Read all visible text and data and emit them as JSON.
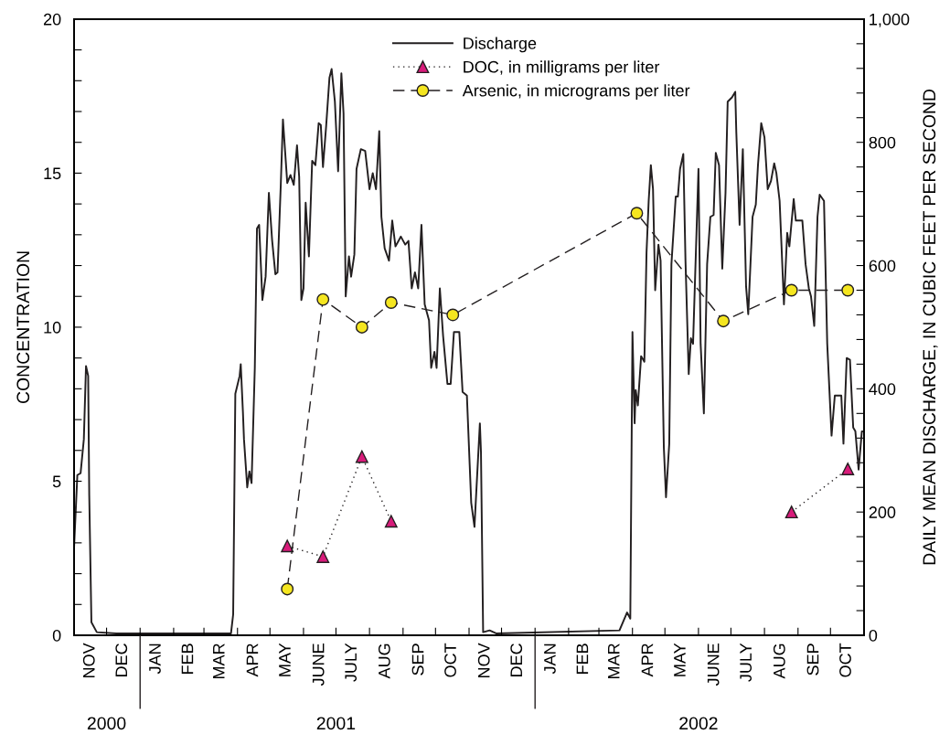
{
  "chart_data": {
    "type": "line",
    "ylabel": "CONCENTRATION",
    "y2label": "DAILY MEAN DISCHARGE, IN CUBIC FEET PER SECOND",
    "xlim": [
      "2000-11-01",
      "2002-11-01"
    ],
    "xticks": [
      {
        "value": "2000-11-01",
        "label": null
      },
      {
        "value": "2000-11-16",
        "label": "NOV"
      },
      {
        "value": "2000-12-01",
        "label": null
      },
      {
        "value": "2000-12-16",
        "label": "DEC"
      },
      {
        "value": "2001-01-01",
        "label": null
      },
      {
        "value": "2001-01-16",
        "label": "JAN"
      },
      {
        "value": "2001-02-01",
        "label": null
      },
      {
        "value": "2001-02-15",
        "label": "FEB"
      },
      {
        "value": "2001-03-01",
        "label": null
      },
      {
        "value": "2001-03-16",
        "label": "MAR"
      },
      {
        "value": "2001-04-01",
        "label": null
      },
      {
        "value": "2001-04-16",
        "label": "APR"
      },
      {
        "value": "2001-05-01",
        "label": null
      },
      {
        "value": "2001-05-16",
        "label": "MAY"
      },
      {
        "value": "2001-06-01",
        "label": null
      },
      {
        "value": "2001-06-16",
        "label": "JUNE"
      },
      {
        "value": "2001-07-01",
        "label": null
      },
      {
        "value": "2001-07-16",
        "label": "JULY"
      },
      {
        "value": "2001-08-01",
        "label": null
      },
      {
        "value": "2001-08-16",
        "label": "AUG"
      },
      {
        "value": "2001-09-01",
        "label": null
      },
      {
        "value": "2001-09-16",
        "label": "SEP"
      },
      {
        "value": "2001-10-01",
        "label": null
      },
      {
        "value": "2001-10-16",
        "label": "OCT"
      },
      {
        "value": "2001-11-01",
        "label": null
      },
      {
        "value": "2001-11-16",
        "label": "NOV"
      },
      {
        "value": "2001-12-01",
        "label": null
      },
      {
        "value": "2001-12-16",
        "label": "DEC"
      },
      {
        "value": "2002-01-01",
        "label": null
      },
      {
        "value": "2002-01-16",
        "label": "JAN"
      },
      {
        "value": "2002-02-01",
        "label": null
      },
      {
        "value": "2002-02-15",
        "label": "FEB"
      },
      {
        "value": "2002-03-01",
        "label": null
      },
      {
        "value": "2002-03-16",
        "label": "MAR"
      },
      {
        "value": "2002-04-01",
        "label": null
      },
      {
        "value": "2002-04-16",
        "label": "APR"
      },
      {
        "value": "2002-05-01",
        "label": null
      },
      {
        "value": "2002-05-16",
        "label": "MAY"
      },
      {
        "value": "2002-06-01",
        "label": null
      },
      {
        "value": "2002-06-16",
        "label": "JUNE"
      },
      {
        "value": "2002-07-01",
        "label": null
      },
      {
        "value": "2002-07-16",
        "label": "JULY"
      },
      {
        "value": "2002-08-01",
        "label": null
      },
      {
        "value": "2002-08-16",
        "label": "AUG"
      },
      {
        "value": "2002-09-01",
        "label": null
      },
      {
        "value": "2002-09-16",
        "label": "SEP"
      },
      {
        "value": "2002-10-01",
        "label": null
      },
      {
        "value": "2002-10-16",
        "label": "OCT"
      }
    ],
    "x2lim": [
      "2000-11-01",
      "2002-11-01"
    ],
    "x2ticks": [
      {
        "value": "2000-12-01",
        "label": "2000"
      },
      {
        "value": "2001-01-01",
        "label": null
      },
      {
        "value": "2001-07-01",
        "label": "2001"
      },
      {
        "value": "2002-01-01",
        "label": null
      },
      {
        "value": "2002-06-01",
        "label": "2002"
      }
    ],
    "ylim": [
      0,
      20
    ],
    "yticks": [
      0,
      {
        "value": 1,
        "label": null
      },
      {
        "value": 2,
        "label": null
      },
      {
        "value": 3,
        "label": null
      },
      {
        "value": 4,
        "label": null
      },
      5,
      {
        "value": 6,
        "label": null
      },
      {
        "value": 7,
        "label": null
      },
      {
        "value": 8,
        "label": null
      },
      {
        "value": 9,
        "label": null
      },
      10,
      {
        "value": 11,
        "label": null
      },
      {
        "value": 12,
        "label": null
      },
      {
        "value": 13,
        "label": null
      },
      {
        "value": 14,
        "label": null
      },
      15,
      {
        "value": 16,
        "label": null
      },
      {
        "value": 17,
        "label": null
      },
      {
        "value": 18,
        "label": null
      },
      {
        "value": 19,
        "label": null
      },
      20
    ],
    "y2lim": [
      0,
      1000
    ],
    "y2ticks": [
      0,
      {
        "value": 40,
        "label": null
      },
      {
        "value": 80,
        "label": null
      },
      {
        "value": 120,
        "label": null
      },
      {
        "value": 160,
        "label": null
      },
      200,
      {
        "value": 240,
        "label": null
      },
      {
        "value": 280,
        "label": null
      },
      {
        "value": 320,
        "label": null
      },
      {
        "value": 360,
        "label": null
      },
      400,
      {
        "value": 440,
        "label": null
      },
      {
        "value": 480,
        "label": null
      },
      {
        "value": 520,
        "label": null
      },
      {
        "value": 560,
        "label": null
      },
      600,
      {
        "value": 640,
        "label": null
      },
      {
        "value": 680,
        "label": null
      },
      {
        "value": 720,
        "label": null
      },
      {
        "value": 760,
        "label": null
      },
      800,
      {
        "value": 840,
        "label": null
      },
      {
        "value": 880,
        "label": null
      },
      {
        "value": 920,
        "label": null
      },
      {
        "value": 960,
        "label": null
      },
      {
        "value": 1000,
        "label": "1,000"
      }
    ],
    "grid": false,
    "legend": "top",
    "series": [
      {
        "name": "Discharge",
        "axis": "y2",
        "color": "#231f20",
        "line_style": "solid",
        "marker": "none",
        "x": [
          "2000-11-01",
          "2000-11-04",
          "2000-11-07",
          "2000-11-10",
          "2000-11-12",
          "2000-11-14",
          "2000-11-15",
          "2000-11-17",
          "2000-11-22",
          "2000-12-10",
          "2001-03-26",
          "2001-03-28",
          "2001-03-30",
          "2001-04-03",
          "2001-04-04",
          "2001-04-06",
          "2001-04-07",
          "2001-04-10",
          "2001-04-12",
          "2001-04-14",
          "2001-04-17",
          "2001-04-19",
          "2001-04-21",
          "2001-04-24",
          "2001-04-27",
          "2001-04-30",
          "2001-05-03",
          "2001-05-06",
          "2001-05-08",
          "2001-05-11",
          "2001-05-13",
          "2001-05-17",
          "2001-05-20",
          "2001-05-23",
          "2001-05-26",
          "2001-05-28",
          "2001-05-30",
          "2001-06-01",
          "2001-06-03",
          "2001-06-06",
          "2001-06-09",
          "2001-06-12",
          "2001-06-15",
          "2001-06-17",
          "2001-06-19",
          "2001-06-22",
          "2001-06-25",
          "2001-06-27",
          "2001-06-30",
          "2001-07-03",
          "2001-07-06",
          "2001-07-08",
          "2001-07-10",
          "2001-07-13",
          "2001-07-15",
          "2001-07-18",
          "2001-07-20",
          "2001-07-24",
          "2001-07-28",
          "2001-08-01",
          "2001-08-04",
          "2001-08-07",
          "2001-08-10",
          "2001-08-12",
          "2001-08-15",
          "2001-08-19",
          "2001-08-22",
          "2001-08-25",
          "2001-08-30",
          "2001-09-03",
          "2001-09-06",
          "2001-09-09",
          "2001-09-12",
          "2001-09-15",
          "2001-09-18",
          "2001-09-21",
          "2001-09-25",
          "2001-09-27",
          "2001-09-30",
          "2001-10-02",
          "2001-10-05",
          "2001-10-08",
          "2001-10-12",
          "2001-10-15",
          "2001-10-18",
          "2001-10-23",
          "2001-10-26",
          "2001-10-30",
          "2001-11-03",
          "2001-11-06",
          "2001-11-11",
          "2001-11-12",
          "2001-11-14",
          "2001-11-20",
          "2001-11-26",
          "2002-03-20",
          "2002-03-27",
          "2002-03-30",
          "2002-04-01",
          "2002-04-03",
          "2002-04-04",
          "2002-04-06",
          "2002-04-09",
          "2002-04-12",
          "2002-04-14",
          "2002-04-16",
          "2002-04-18",
          "2002-04-20",
          "2002-04-22",
          "2002-04-25",
          "2002-04-27",
          "2002-04-30",
          "2002-05-02",
          "2002-05-05",
          "2002-05-07",
          "2002-05-11",
          "2002-05-13",
          "2002-05-15",
          "2002-05-18",
          "2002-05-20",
          "2002-05-23",
          "2002-05-25",
          "2002-05-27",
          "2002-06-01",
          "2002-06-03",
          "2002-06-06",
          "2002-06-09",
          "2002-06-12",
          "2002-06-15",
          "2002-06-17",
          "2002-06-20",
          "2002-06-23",
          "2002-06-26",
          "2002-06-28",
          "2002-07-02",
          "2002-07-05",
          "2002-07-06",
          "2002-07-09",
          "2002-07-12",
          "2002-07-15",
          "2002-07-17",
          "2002-07-21",
          "2002-07-24",
          "2002-07-26",
          "2002-07-29",
          "2002-08-01",
          "2002-08-04",
          "2002-08-07",
          "2002-08-10",
          "2002-08-12",
          "2002-08-15",
          "2002-08-19",
          "2002-08-22",
          "2002-08-24",
          "2002-08-28",
          "2002-08-30",
          "2002-09-05",
          "2002-09-08",
          "2002-09-11",
          "2002-09-13",
          "2002-09-16",
          "2002-09-19",
          "2002-09-21",
          "2002-09-25",
          "2002-09-28",
          "2002-10-02",
          "2002-10-05",
          "2002-10-11",
          "2002-10-13",
          "2002-10-16",
          "2002-10-19",
          "2002-10-22",
          "2002-10-24",
          "2002-10-27",
          "2002-10-30",
          "2002-10-31"
        ],
        "values": [
          144,
          260,
          263,
          318,
          437,
          421,
          227,
          21,
          5,
          3,
          3,
          34,
          392,
          421,
          440,
          363,
          318,
          240,
          266,
          247,
          434,
          660,
          666,
          544,
          582,
          718,
          641,
          586,
          589,
          731,
          837,
          734,
          747,
          731,
          795,
          744,
          544,
          563,
          702,
          615,
          770,
          763,
          831,
          828,
          760,
          828,
          905,
          919,
          866,
          753,
          912,
          847,
          550,
          615,
          582,
          618,
          757,
          789,
          786,
          724,
          750,
          724,
          818,
          679,
          628,
          608,
          673,
          631,
          647,
          634,
          640,
          563,
          589,
          563,
          666,
          537,
          511,
          434,
          460,
          434,
          563,
          486,
          408,
          408,
          492,
          492,
          395,
          389,
          215,
          176,
          344,
          298,
          5,
          8,
          3,
          8,
          37,
          27,
          492,
          344,
          398,
          373,
          453,
          444,
          621,
          705,
          763,
          724,
          560,
          634,
          608,
          305,
          224,
          311,
          602,
          712,
          712,
          757,
          781,
          608,
          424,
          482,
          473,
          757,
          473,
          360,
          602,
          679,
          682,
          783,
          763,
          595,
          718,
          866,
          873,
          882,
          815,
          666,
          789,
          566,
          521,
          679,
          699,
          763,
          831,
          808,
          724,
          737,
          766,
          750,
          705,
          537,
          653,
          631,
          708,
          673,
          673,
          602,
          563,
          550,
          502,
          679,
          715,
          705,
          473,
          324,
          389,
          389,
          311,
          450,
          447,
          337,
          331,
          269,
          331,
          331
        ]
      },
      {
        "name": "DOC, in milligrams per liter",
        "color": "#d81b7a",
        "line_style": "dotted",
        "marker": "triangle",
        "x": [
          "2001-05-17",
          "2001-06-19",
          "2001-07-25",
          "2001-08-21"
        ],
        "values": [
          2.9,
          2.55,
          5.8,
          3.7
        ]
      },
      {
        "color": "#d81b7a",
        "line_style": "dotted",
        "marker": "triangle",
        "x": [
          "2002-08-26",
          "2002-10-17"
        ],
        "values": [
          4.0,
          5.4
        ]
      },
      {
        "name": "Arsenic, in micrograms per liter",
        "color": "#f5e620",
        "line_style": "dashed",
        "marker": "circle",
        "x": [
          "2001-05-17",
          "2001-06-19",
          "2001-07-25",
          "2001-08-21",
          "2001-10-17",
          "2002-04-05",
          "2002-06-24",
          "2002-08-26",
          "2002-10-17"
        ],
        "values": [
          1.5,
          10.9,
          10.0,
          10.8,
          10.4,
          13.7,
          10.2,
          11.2,
          11.2
        ]
      }
    ]
  }
}
